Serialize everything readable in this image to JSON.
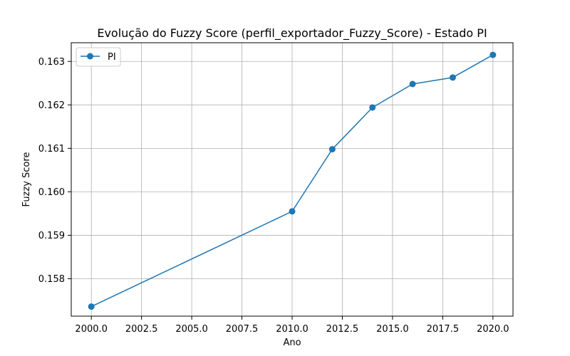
{
  "chart_data": {
    "type": "line",
    "title": "Evolução do Fuzzy Score (perfil_exportador_Fuzzy_Score) - Estado PI",
    "xlabel": "Ano",
    "ylabel": "Fuzzy Score",
    "xlim": [
      1999.0,
      2021.0
    ],
    "ylim": [
      0.15714,
      0.16343
    ],
    "xticks": [
      2000.0,
      2002.5,
      2005.0,
      2007.5,
      2010.0,
      2012.5,
      2015.0,
      2017.5,
      2020.0
    ],
    "xtick_labels": [
      "2000.0",
      "2002.5",
      "2005.0",
      "2007.5",
      "2010.0",
      "2012.5",
      "2015.0",
      "2017.5",
      "2020.0"
    ],
    "yticks": [
      0.158,
      0.159,
      0.16,
      0.161,
      0.162,
      0.163
    ],
    "ytick_labels": [
      "0.158",
      "0.159",
      "0.160",
      "0.161",
      "0.162",
      "0.163"
    ],
    "grid": true,
    "legend": "upper-left",
    "series": [
      {
        "name": "PI",
        "color": "#1f77b4",
        "marker": "circle",
        "x": [
          2000,
          2010,
          2012,
          2014,
          2016,
          2018,
          2020
        ],
        "y": [
          0.15736,
          0.15955,
          0.16098,
          0.16194,
          0.16248,
          0.16263,
          0.16315
        ]
      }
    ]
  }
}
